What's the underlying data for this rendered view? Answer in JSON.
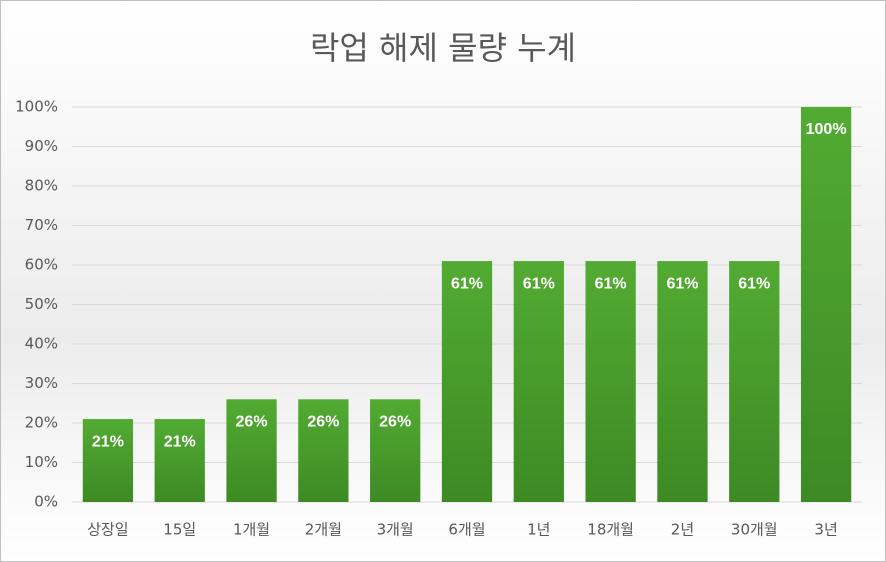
{
  "chart_data": {
    "type": "bar",
    "title": "락업 해제 물량 누계",
    "categories": [
      "상장일",
      "15일",
      "1개월",
      "2개월",
      "3개월",
      "6개월",
      "1년",
      "18개월",
      "2년",
      "30개월",
      "3년"
    ],
    "values": [
      21,
      21,
      26,
      26,
      26,
      61,
      61,
      61,
      61,
      61,
      100
    ],
    "value_labels": [
      "21%",
      "21%",
      "26%",
      "26%",
      "26%",
      "61%",
      "61%",
      "61%",
      "61%",
      "61%",
      "100%"
    ],
    "color": "#4ea72e",
    "ylim": [
      0,
      100
    ],
    "yticks": [
      {
        "value": 0,
        "label": "0%"
      },
      {
        "value": 10,
        "label": "10%"
      },
      {
        "value": 20,
        "label": "20%"
      },
      {
        "value": 30,
        "label": "30%"
      },
      {
        "value": 40,
        "label": "40%"
      },
      {
        "value": 50,
        "label": "50%"
      },
      {
        "value": 60,
        "label": "60%"
      },
      {
        "value": 70,
        "label": "70%"
      },
      {
        "value": 80,
        "label": "80%"
      },
      {
        "value": 90,
        "label": "90%"
      },
      {
        "value": 100,
        "label": "100%"
      }
    ],
    "grid": true
  }
}
